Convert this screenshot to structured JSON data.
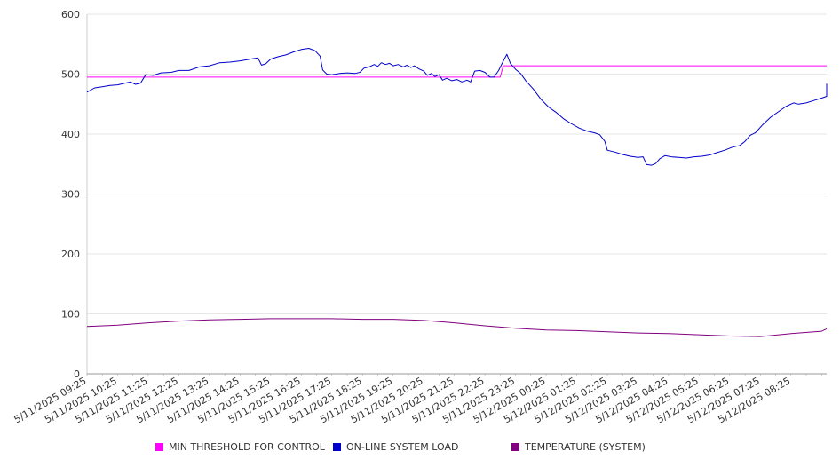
{
  "chart_data": {
    "type": "line",
    "title": "",
    "xlabel": "",
    "ylabel": "",
    "ylim": [
      0,
      600
    ],
    "y_ticks": [
      0,
      100,
      200,
      300,
      400,
      500,
      600
    ],
    "x_range": [
      "2025-05-11 09:25",
      "2025-05-12 09:35"
    ],
    "x_tick_labels": [
      "5/11/2025 09:25",
      "5/11/2025 10:25",
      "5/11/2025 11:25",
      "5/11/2025 12:25",
      "5/11/2025 13:25",
      "5/11/2025 14:25",
      "5/11/2025 15:25",
      "5/11/2025 16:25",
      "5/11/2025 17:25",
      "5/11/2025 18:25",
      "5/11/2025 19:25",
      "5/11/2025 20:25",
      "5/11/2025 21:25",
      "5/11/2025 22:25",
      "5/11/2025 23:25",
      "5/12/2025 00:25",
      "5/12/2025 01:25",
      "5/12/2025 02:25",
      "5/12/2025 03:25",
      "5/12/2025 04:25",
      "5/12/2025 05:25",
      "5/12/2025 06:25",
      "5/12/2025 07:25",
      "5/12/2025 08:25"
    ],
    "grid": true,
    "legend_position": "bottom",
    "series": [
      {
        "name": "MIN THRESHOLD FOR CONTROL",
        "color": "#ff00ff",
        "points": [
          [
            "2025-05-11 09:25",
            495
          ],
          [
            "2025-05-11 22:55",
            495
          ],
          [
            "2025-05-11 23:01",
            514
          ],
          [
            "2025-05-12 09:35",
            514
          ]
        ]
      },
      {
        "name": "ON-LINE SYSTEM LOAD",
        "color": "#0000cc",
        "points": [
          [
            "2025-05-11 09:25",
            470
          ],
          [
            "2025-05-11 09:40",
            477
          ],
          [
            "2025-05-11 09:55",
            479
          ],
          [
            "2025-05-11 10:10",
            481
          ],
          [
            "2025-05-11 10:25",
            482
          ],
          [
            "2025-05-11 10:40",
            485
          ],
          [
            "2025-05-11 10:50",
            487
          ],
          [
            "2025-05-11 11:00",
            483
          ],
          [
            "2025-05-11 11:10",
            485
          ],
          [
            "2025-05-11 11:20",
            499
          ],
          [
            "2025-05-11 11:35",
            498
          ],
          [
            "2025-05-11 11:50",
            502
          ],
          [
            "2025-05-11 12:10",
            503
          ],
          [
            "2025-05-11 12:25",
            506
          ],
          [
            "2025-05-11 12:45",
            506
          ],
          [
            "2025-05-11 13:05",
            512
          ],
          [
            "2025-05-11 13:25",
            514
          ],
          [
            "2025-05-11 13:45",
            519
          ],
          [
            "2025-05-11 14:05",
            520
          ],
          [
            "2025-05-11 14:25",
            522
          ],
          [
            "2025-05-11 14:45",
            525
          ],
          [
            "2025-05-11 15:00",
            527
          ],
          [
            "2025-05-11 15:07",
            515
          ],
          [
            "2025-05-11 15:15",
            517
          ],
          [
            "2025-05-11 15:25",
            525
          ],
          [
            "2025-05-11 15:40",
            529
          ],
          [
            "2025-05-11 15:55",
            532
          ],
          [
            "2025-05-11 16:10",
            537
          ],
          [
            "2025-05-11 16:25",
            541
          ],
          [
            "2025-05-11 16:40",
            543
          ],
          [
            "2025-05-11 16:52",
            539
          ],
          [
            "2025-05-11 17:02",
            530
          ],
          [
            "2025-05-11 17:07",
            507
          ],
          [
            "2025-05-11 17:15",
            500
          ],
          [
            "2025-05-11 17:25",
            499
          ],
          [
            "2025-05-11 17:40",
            501
          ],
          [
            "2025-05-11 17:55",
            502
          ],
          [
            "2025-05-11 18:10",
            501
          ],
          [
            "2025-05-11 18:20",
            503
          ],
          [
            "2025-05-11 18:28",
            510
          ],
          [
            "2025-05-11 18:38",
            512
          ],
          [
            "2025-05-11 18:48",
            516
          ],
          [
            "2025-05-11 18:55",
            513
          ],
          [
            "2025-05-11 19:02",
            519
          ],
          [
            "2025-05-11 19:10",
            516
          ],
          [
            "2025-05-11 19:18",
            518
          ],
          [
            "2025-05-11 19:25",
            514
          ],
          [
            "2025-05-11 19:35",
            516
          ],
          [
            "2025-05-11 19:45",
            512
          ],
          [
            "2025-05-11 19:52",
            515
          ],
          [
            "2025-05-11 20:00",
            511
          ],
          [
            "2025-05-11 20:07",
            514
          ],
          [
            "2025-05-11 20:15",
            509
          ],
          [
            "2025-05-11 20:25",
            505
          ],
          [
            "2025-05-11 20:32",
            498
          ],
          [
            "2025-05-11 20:40",
            501
          ],
          [
            "2025-05-11 20:47",
            496
          ],
          [
            "2025-05-11 20:55",
            499
          ],
          [
            "2025-05-11 21:02",
            490
          ],
          [
            "2025-05-11 21:10",
            493
          ],
          [
            "2025-05-11 21:20",
            489
          ],
          [
            "2025-05-11 21:30",
            491
          ],
          [
            "2025-05-11 21:40",
            487
          ],
          [
            "2025-05-11 21:50",
            490
          ],
          [
            "2025-05-11 21:57",
            487
          ],
          [
            "2025-05-11 22:05",
            505
          ],
          [
            "2025-05-11 22:15",
            506
          ],
          [
            "2025-05-11 22:25",
            503
          ],
          [
            "2025-05-11 22:35",
            495
          ],
          [
            "2025-05-11 22:43",
            495
          ],
          [
            "2025-05-11 22:52",
            506
          ],
          [
            "2025-05-11 23:00",
            520
          ],
          [
            "2025-05-11 23:08",
            533
          ],
          [
            "2025-05-11 23:15",
            518
          ],
          [
            "2025-05-11 23:25",
            508
          ],
          [
            "2025-05-11 23:35",
            501
          ],
          [
            "2025-05-11 23:45",
            489
          ],
          [
            "2025-05-12 00:00",
            475
          ],
          [
            "2025-05-12 00:15",
            458
          ],
          [
            "2025-05-12 00:30",
            445
          ],
          [
            "2025-05-12 00:45",
            436
          ],
          [
            "2025-05-12 01:00",
            425
          ],
          [
            "2025-05-12 01:15",
            417
          ],
          [
            "2025-05-12 01:30",
            410
          ],
          [
            "2025-05-12 01:45",
            405
          ],
          [
            "2025-05-12 02:00",
            402
          ],
          [
            "2025-05-12 02:10",
            399
          ],
          [
            "2025-05-12 02:20",
            388
          ],
          [
            "2025-05-12 02:25",
            373
          ],
          [
            "2025-05-12 02:40",
            370
          ],
          [
            "2025-05-12 02:55",
            366
          ],
          [
            "2025-05-12 03:10",
            363
          ],
          [
            "2025-05-12 03:25",
            361
          ],
          [
            "2025-05-12 03:35",
            362
          ],
          [
            "2025-05-12 03:42",
            349
          ],
          [
            "2025-05-12 03:52",
            348
          ],
          [
            "2025-05-12 04:00",
            351
          ],
          [
            "2025-05-12 04:08",
            359
          ],
          [
            "2025-05-12 04:18",
            364
          ],
          [
            "2025-05-12 04:30",
            362
          ],
          [
            "2025-05-12 04:45",
            361
          ],
          [
            "2025-05-12 05:00",
            360
          ],
          [
            "2025-05-12 05:15",
            362
          ],
          [
            "2025-05-12 05:30",
            363
          ],
          [
            "2025-05-12 05:45",
            365
          ],
          [
            "2025-05-12 06:00",
            369
          ],
          [
            "2025-05-12 06:15",
            373
          ],
          [
            "2025-05-12 06:30",
            378
          ],
          [
            "2025-05-12 06:45",
            381
          ],
          [
            "2025-05-12 06:55",
            388
          ],
          [
            "2025-05-12 07:05",
            398
          ],
          [
            "2025-05-12 07:15",
            402
          ],
          [
            "2025-05-12 07:30",
            416
          ],
          [
            "2025-05-12 07:45",
            428
          ],
          [
            "2025-05-12 08:00",
            437
          ],
          [
            "2025-05-12 08:15",
            446
          ],
          [
            "2025-05-12 08:30",
            452
          ],
          [
            "2025-05-12 08:40",
            450
          ],
          [
            "2025-05-12 08:55",
            452
          ],
          [
            "2025-05-12 09:10",
            456
          ],
          [
            "2025-05-12 09:25",
            460
          ],
          [
            "2025-05-12 09:40",
            463
          ],
          [
            "2025-05-12 09:55",
            468
          ],
          [
            "2025-05-12 10:05",
            472
          ],
          [
            "2025-05-12 10:12",
            480
          ],
          [
            "2025-05-12 10:15",
            484
          ]
        ]
      },
      {
        "name": "TEMPERATURE (SYSTEM)",
        "color": "#800080",
        "points": [
          [
            "2025-05-11 09:25",
            79
          ],
          [
            "2025-05-11 10:25",
            81
          ],
          [
            "2025-05-11 11:25",
            85
          ],
          [
            "2025-05-11 12:25",
            88
          ],
          [
            "2025-05-11 13:25",
            90
          ],
          [
            "2025-05-11 14:25",
            91
          ],
          [
            "2025-05-11 15:25",
            92
          ],
          [
            "2025-05-11 16:25",
            92
          ],
          [
            "2025-05-11 17:25",
            92
          ],
          [
            "2025-05-11 18:25",
            91
          ],
          [
            "2025-05-11 19:25",
            91
          ],
          [
            "2025-05-11 20:25",
            89
          ],
          [
            "2025-05-11 21:25",
            85
          ],
          [
            "2025-05-11 22:25",
            80
          ],
          [
            "2025-05-11 23:25",
            76
          ],
          [
            "2025-05-12 00:25",
            73
          ],
          [
            "2025-05-12 01:25",
            72
          ],
          [
            "2025-05-12 02:25",
            70
          ],
          [
            "2025-05-12 03:25",
            68
          ],
          [
            "2025-05-12 04:25",
            67
          ],
          [
            "2025-05-12 05:25",
            65
          ],
          [
            "2025-05-12 06:25",
            63
          ],
          [
            "2025-05-12 07:25",
            62
          ],
          [
            "2025-05-12 08:25",
            67
          ],
          [
            "2025-05-12 09:25",
            71
          ],
          [
            "2025-05-12 10:15",
            75
          ]
        ]
      }
    ]
  }
}
